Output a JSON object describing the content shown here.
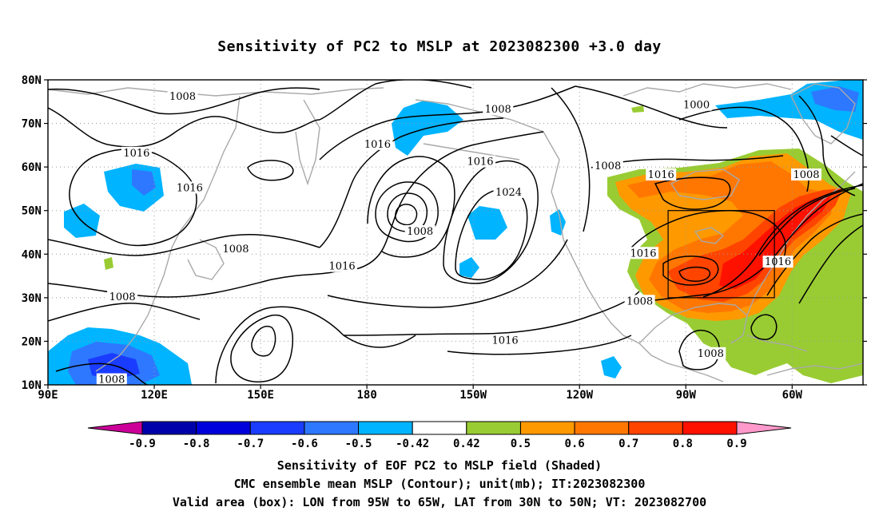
{
  "title": "Sensitivity of PC2 to MSLP at 2023082300 +3.0 day",
  "map": {
    "lat_ticks": [
      "80N",
      "70N",
      "60N",
      "50N",
      "40N",
      "30N",
      "20N",
      "10N"
    ],
    "lon_ticks": [
      "90E",
      "120E",
      "150E",
      "180",
      "150W",
      "120W",
      "90W",
      "60W"
    ],
    "lon_range_deg_east": [
      90,
      320
    ],
    "lat_range": [
      10,
      80
    ],
    "gridlines": true
  },
  "box": {
    "lon": [
      "95W",
      "65W"
    ],
    "lat": [
      "30N",
      "50N"
    ]
  },
  "contour_labels": [
    {
      "id": "c1",
      "text": "1008",
      "lon": 128,
      "lat": 76
    },
    {
      "id": "c2",
      "text": "1016",
      "lon": 115,
      "lat": 63
    },
    {
      "id": "c3",
      "text": "1016",
      "lon": 130,
      "lat": 55
    },
    {
      "id": "c4",
      "text": "1008",
      "lon": 143,
      "lat": 41
    },
    {
      "id": "c5",
      "text": "1016",
      "lon": 173,
      "lat": 37
    },
    {
      "id": "c6",
      "text": "1008",
      "lon": 111,
      "lat": 30
    },
    {
      "id": "c7",
      "text": "1008",
      "lon": 108,
      "lat": 11
    },
    {
      "id": "c8",
      "text": "1016",
      "lon": 183,
      "lat": 65
    },
    {
      "id": "c9",
      "text": "1008",
      "lon": 217,
      "lat": 73
    },
    {
      "id": "c10",
      "text": "1016",
      "lon": 212,
      "lat": 61
    },
    {
      "id": "c11",
      "text": "1024",
      "lon": 220,
      "lat": 54
    },
    {
      "id": "c12",
      "text": "1008",
      "lon": 195,
      "lat": 45
    },
    {
      "id": "c13",
      "text": "1016",
      "lon": 219,
      "lat": 20
    },
    {
      "id": "c14",
      "text": "1008",
      "lon": 248,
      "lat": 60
    },
    {
      "id": "c15",
      "text": "1000",
      "lon": 273,
      "lat": 74
    },
    {
      "id": "c16",
      "text": "1016",
      "lon": 263,
      "lat": 58
    },
    {
      "id": "c17",
      "text": "1008",
      "lon": 304,
      "lat": 58
    },
    {
      "id": "c18",
      "text": "1016",
      "lon": 258,
      "lat": 40
    },
    {
      "id": "c19",
      "text": "1016",
      "lon": 296,
      "lat": 38
    },
    {
      "id": "c20",
      "text": "1008",
      "lon": 257,
      "lat": 29
    },
    {
      "id": "c21",
      "text": "1008",
      "lon": 277,
      "lat": 17
    }
  ],
  "colorbar": {
    "labels": [
      "-0.9",
      "-0.8",
      "-0.7",
      "-0.6",
      "-0.5",
      "-0.42",
      "0.42",
      "0.5",
      "0.6",
      "0.7",
      "0.8",
      "0.9"
    ],
    "colors": [
      "#cc0099",
      "#0000aa",
      "#0000dd",
      "#1a3cff",
      "#2e78ff",
      "#00b4ff",
      "#ffffff",
      "#99cc33",
      "#ff9900",
      "#ff7700",
      "#ff4400",
      "#ff1100",
      "#ff99cc"
    ]
  },
  "notes": {
    "line1": "Sensitivity of EOF PC2 to MSLP field (Shaded)",
    "line2": "CMC ensemble mean MSLP (Contour); unit(mb); IT:2023082300",
    "line3": "Valid area (box): LON from 95W to 65W, LAT from 30N to 50N; VT: 2023082700"
  }
}
